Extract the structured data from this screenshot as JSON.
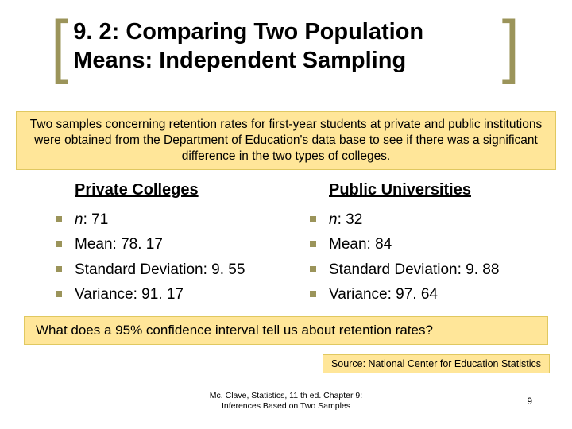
{
  "title": "9. 2: Comparing Two Population Means: Independent Sampling",
  "intro": "Two samples concerning retention rates for first-year students at private and public institutions were obtained from the Department of Education's data base to see if there was a significant difference in the two types of colleges.",
  "columns": {
    "left": {
      "header": "Private Colleges",
      "items": [
        {
          "label": "n",
          "sep": ": ",
          "value": "71",
          "italicLabel": true
        },
        {
          "label": "Mean",
          "sep": ": ",
          "value": "78. 17"
        },
        {
          "label": "Standard Deviation",
          "sep": ": ",
          "value": "9. 55"
        },
        {
          "label": "Variance",
          "sep": ": ",
          "value": "91. 17"
        }
      ]
    },
    "right": {
      "header": "Public Universities",
      "items": [
        {
          "label": "n",
          "sep": ": ",
          "value": "32",
          "italicLabel": true
        },
        {
          "label": "Mean",
          "sep": ": ",
          "value": "84"
        },
        {
          "label": "Standard Deviation",
          "sep": ": ",
          "value": "9. 88"
        },
        {
          "label": "Variance",
          "sep": ": ",
          "value": "97. 64"
        }
      ]
    }
  },
  "question": "What does a 95% confidence interval tell us about retention rates?",
  "source": "Source: National Center for Education Statistics",
  "footer": {
    "center_line1": "Mc. Clave, Statistics, 11 th ed. Chapter 9:",
    "center_line2": "Inferences Based on Two Samples",
    "page": "9"
  },
  "style": {
    "accent_color": "#9b945a",
    "highlight_bg": "#ffe699",
    "highlight_border": "#e0c860",
    "title_fontsize": 29,
    "body_fontsize": 19,
    "header_fontsize": 20
  }
}
